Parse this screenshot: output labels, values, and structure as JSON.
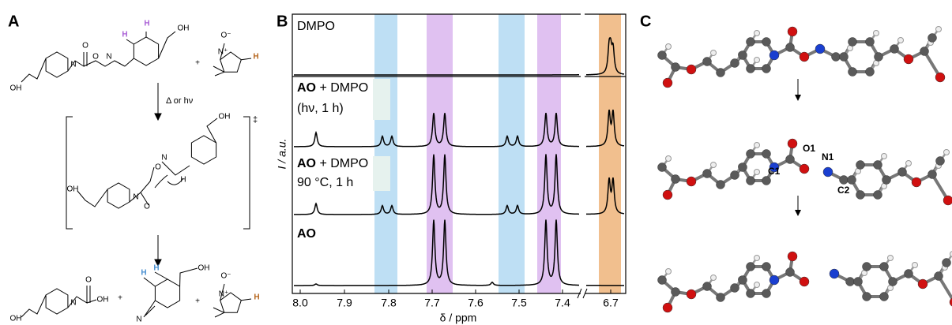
{
  "panel_a": {
    "label": "A",
    "condition": "Δ or hν",
    "ts_mark": "‡",
    "reactants": [
      {
        "text": "OH"
      },
      {
        "text": "N"
      },
      {
        "text": "O"
      },
      {
        "text": "O"
      },
      {
        "text": "N"
      },
      {
        "text": "H",
        "color": "#a95fd6"
      },
      {
        "text": "H",
        "color": "#a95fd6"
      },
      {
        "text": "OH"
      },
      {
        "text": "+"
      },
      {
        "text": "O⁻"
      },
      {
        "text": "N⁺"
      },
      {
        "text": "H",
        "color": "#b5651d"
      }
    ],
    "transition_state": [
      {
        "text": "OH"
      },
      {
        "text": "N"
      },
      {
        "text": "O"
      },
      {
        "text": "O"
      },
      {
        "text": "N"
      },
      {
        "text": "H"
      },
      {
        "text": "OH"
      }
    ],
    "products": [
      {
        "text": "OH"
      },
      {
        "text": "N"
      },
      {
        "text": "O"
      },
      {
        "text": "OH"
      },
      {
        "text": "+"
      },
      {
        "text": "H",
        "color": "#4a90d0"
      },
      {
        "text": "H",
        "color": "#4a90d0"
      },
      {
        "text": "N"
      },
      {
        "text": "OH"
      },
      {
        "text": "+"
      },
      {
        "text": "O⁻"
      },
      {
        "text": "N⁺"
      },
      {
        "text": "H",
        "color": "#b5651d"
      }
    ]
  },
  "panel_b": {
    "label": "B",
    "y_label": "I / a.u.",
    "x_label": "δ / ppm",
    "ticks": [
      "8.0",
      "7.9",
      "7.8",
      "7.7",
      "7.6",
      "7.5",
      "7.4",
      "6.7"
    ],
    "traces": [
      {
        "line1": "DMPO"
      },
      {
        "bold": "AO",
        "line1": " + DMPO",
        "line2": "(hν, 1 h)"
      },
      {
        "bold": "AO",
        "line1": " + DMPO",
        "line2": "90 °C, 1 h"
      },
      {
        "bold": "AO"
      }
    ]
  },
  "panel_c": {
    "label": "C",
    "atom_labels": [
      "O1",
      "N1",
      "C1",
      "C2"
    ]
  }
}
